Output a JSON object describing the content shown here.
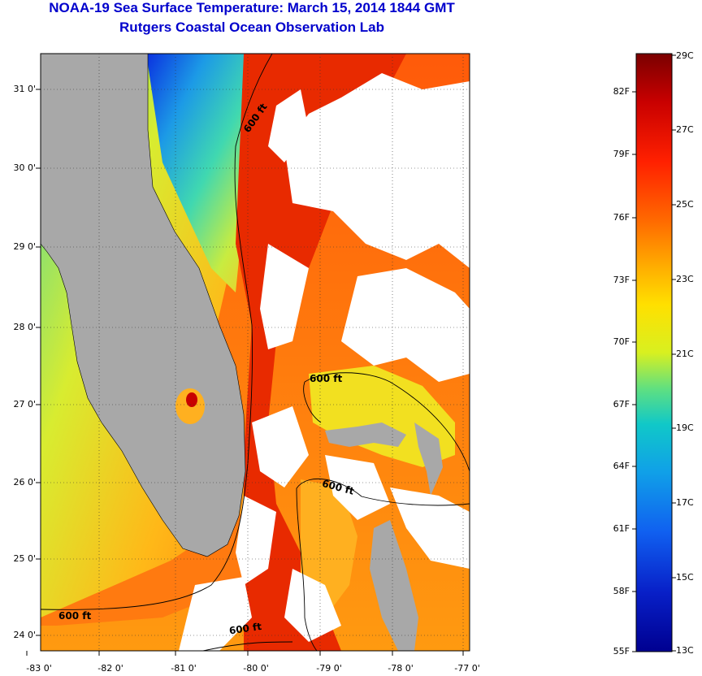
{
  "title": {
    "line1": "NOAA-19 Sea Surface Temperature:  March 15, 2014 1844 GMT",
    "line2": "Rutgers Coastal Ocean Observation Lab"
  },
  "map": {
    "latitude_labels": [
      "31 0'",
      "30 0'",
      "29 0'",
      "28 0'",
      "27 0'",
      "26 0'",
      "25 0'",
      "24 0'"
    ],
    "longitude_labels": [
      "-83 0'",
      "-82 0'",
      "-81 0'",
      "-80 0'",
      "-79 0'",
      "-78 0'",
      "-77 0'"
    ],
    "contour_labels": [
      "600 ft",
      "600 ft",
      "600 ft",
      "600 ft",
      "600 ft"
    ],
    "colors": {
      "land": "#a8a8a8",
      "cloud": "#ffffff"
    }
  },
  "colorbar": {
    "fahrenheit": [
      "82F",
      "79F",
      "76F",
      "73F",
      "70F",
      "67F",
      "64F",
      "61F",
      "58F",
      "55F"
    ],
    "celsius": [
      "29C",
      "27C",
      "25C",
      "23C",
      "21C",
      "19C",
      "17C",
      "15C",
      "13C"
    ],
    "gradient": [
      "#7a0000",
      "#c80000",
      "#ff2000",
      "#ff6a00",
      "#ffb000",
      "#ffe000",
      "#d8f020",
      "#60e080",
      "#10c8c8",
      "#10a0e8",
      "#1060f0",
      "#0820c8",
      "#000090"
    ]
  }
}
